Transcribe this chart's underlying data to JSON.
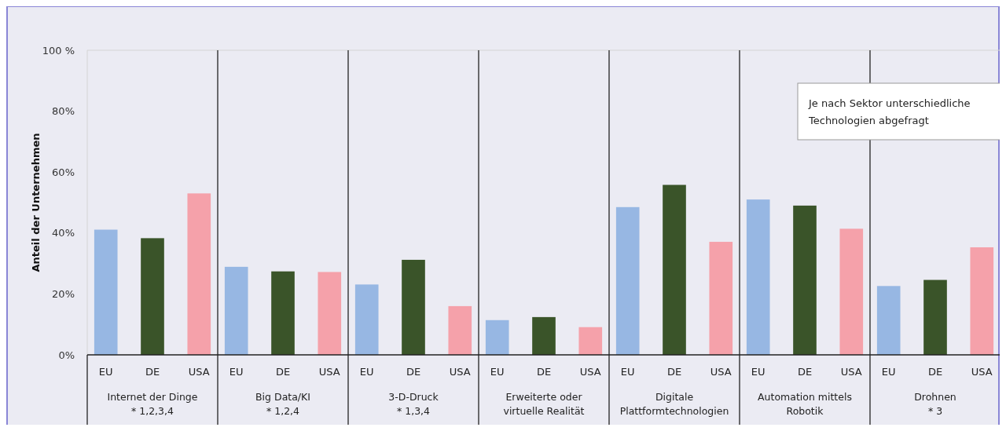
{
  "chart_data": {
    "type": "bar",
    "ylabel": "Anteil der Unternehmen",
    "categories": [
      "Internet der Dinge\n* 1,2,3,4",
      "Big Data/KI\n* 1,2,4",
      "3-D-Druck\n* 1,3,4",
      "Erweiterte oder\nvirtuelle Realität",
      "Digitale\nPlattformtechnologien",
      "Automation mittels\nRobotik",
      "Drohnen\n* 3"
    ],
    "series": [
      {
        "name": "EU",
        "color": "#97b7e3",
        "values": [
          41.1,
          28.9,
          23.1,
          11.4,
          48.5,
          51.0,
          22.6
        ]
      },
      {
        "name": "DE",
        "color": "#3a5429",
        "values": [
          38.3,
          27.4,
          31.2,
          12.4,
          55.8,
          49.0,
          24.6
        ]
      },
      {
        "name": "USA",
        "color": "#f5a1aa",
        "values": [
          53.0,
          27.2,
          16.0,
          9.1,
          37.1,
          41.4,
          35.3
        ]
      }
    ],
    "ylim": [
      0,
      100
    ],
    "yticks": [
      {
        "value": 0,
        "label": "0%"
      },
      {
        "value": 20,
        "label": "20%"
      },
      {
        "value": 40,
        "label": "40%"
      },
      {
        "value": 60,
        "label": "60%"
      },
      {
        "value": 80,
        "label": "80%"
      },
      {
        "value": 100,
        "label": "100 %"
      }
    ],
    "annotations": [
      "Je nach Sektor unterschiedliche\nTechnologien abgefragt"
    ]
  }
}
